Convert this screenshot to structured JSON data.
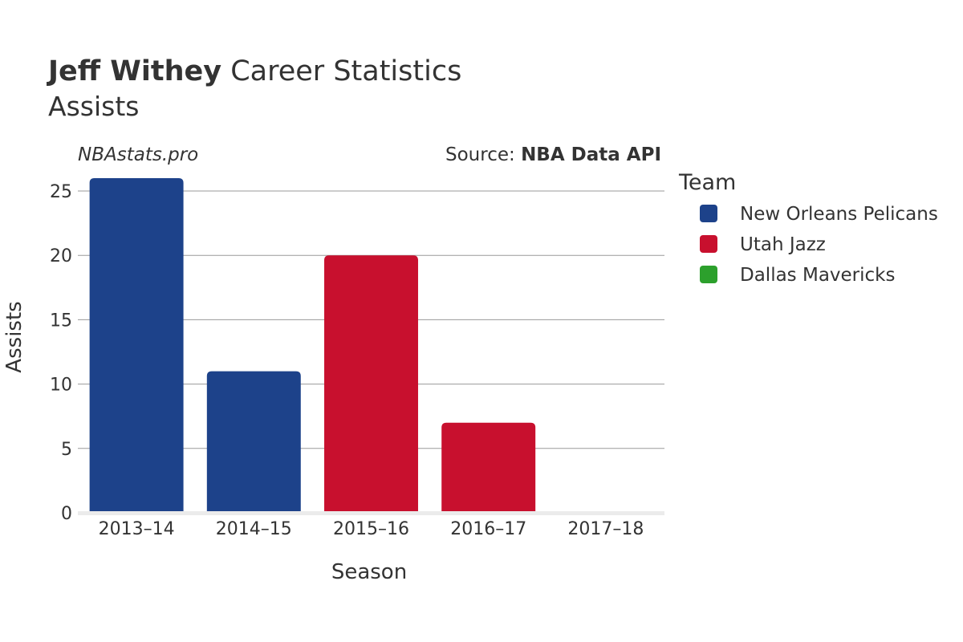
{
  "header": {
    "player_name": "Jeff Withey",
    "title_rest": " Career Statistics",
    "subtitle": "Assists"
  },
  "credits": {
    "site": "NBAstats.pro",
    "source_prefix": "Source: ",
    "source_name": "NBA Data API"
  },
  "legend": {
    "title": "Team",
    "items": [
      {
        "label": "New Orleans Pelicans",
        "color": "#1d428a"
      },
      {
        "label": "Utah Jazz",
        "color": "#c8102e"
      },
      {
        "label": "Dallas Mavericks",
        "color": "#2ca02c"
      }
    ]
  },
  "chart_data": {
    "type": "bar",
    "title": "Jeff Withey Career Statistics",
    "subtitle": "Assists",
    "xlabel": "Season",
    "ylabel": "Assists",
    "categories": [
      "2013–14",
      "2014–15",
      "2015–16",
      "2016–17",
      "2017–18"
    ],
    "ylim": [
      0,
      26
    ],
    "yticks": [
      0,
      5,
      10,
      15,
      20,
      25
    ],
    "grid": true,
    "legend_placement": "right",
    "bars": [
      {
        "category": "2013–14",
        "value": 26,
        "team": "New Orleans Pelicans",
        "color": "#1d428a"
      },
      {
        "category": "2014–15",
        "value": 11,
        "team": "New Orleans Pelicans",
        "color": "#1d428a"
      },
      {
        "category": "2015–16",
        "value": 20,
        "team": "Utah Jazz",
        "color": "#c8102e"
      },
      {
        "category": "2016–17",
        "value": 7,
        "team": "Utah Jazz",
        "color": "#c8102e"
      },
      {
        "category": "2017–18",
        "value": 0,
        "team": "Dallas Mavericks",
        "color": "#2ca02c"
      }
    ]
  }
}
